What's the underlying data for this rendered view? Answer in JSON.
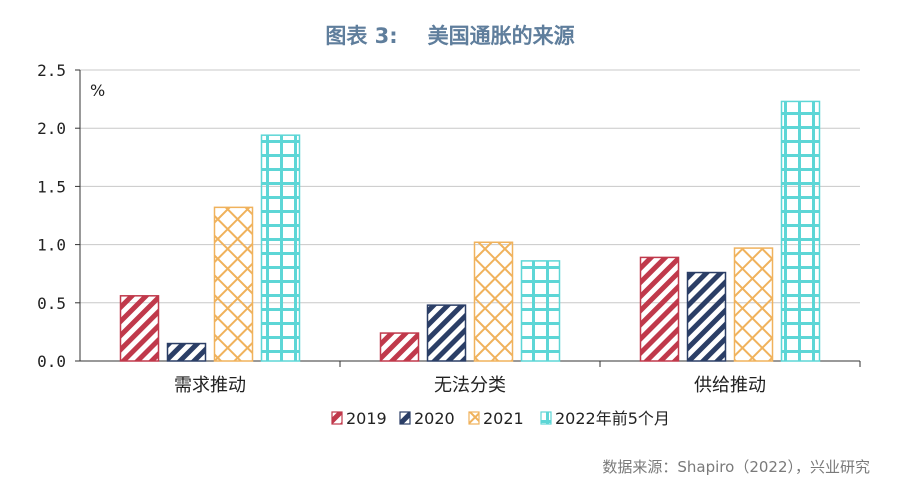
{
  "title": {
    "label": "图表 3:",
    "text": "美国通胀的来源"
  },
  "source": "数据来源：Shapiro（2022），兴业研究",
  "chart_data": {
    "type": "bar",
    "unit_label": "%",
    "categories": [
      "需求推动",
      "无法分类",
      "供给推动"
    ],
    "yticks": [
      "0.0",
      "0.5",
      "1.0",
      "1.5",
      "2.0",
      "2.5"
    ],
    "ylim": [
      0,
      2.5
    ],
    "grid": true,
    "legend_position": "bottom",
    "series": [
      {
        "name": "2019",
        "values": [
          0.56,
          0.24,
          0.89
        ],
        "color": "#c0394b",
        "pattern": "diagonal"
      },
      {
        "name": "2020",
        "values": [
          0.15,
          0.48,
          0.76
        ],
        "color": "#2b3e66",
        "pattern": "diagonal"
      },
      {
        "name": "2021",
        "values": [
          1.32,
          1.02,
          0.97
        ],
        "color": "#f0b25c",
        "pattern": "crosshatch"
      },
      {
        "name": "2022年前5个月",
        "values": [
          1.94,
          0.86,
          2.23
        ],
        "color": "#5dd6d6",
        "pattern": "grid"
      }
    ]
  }
}
